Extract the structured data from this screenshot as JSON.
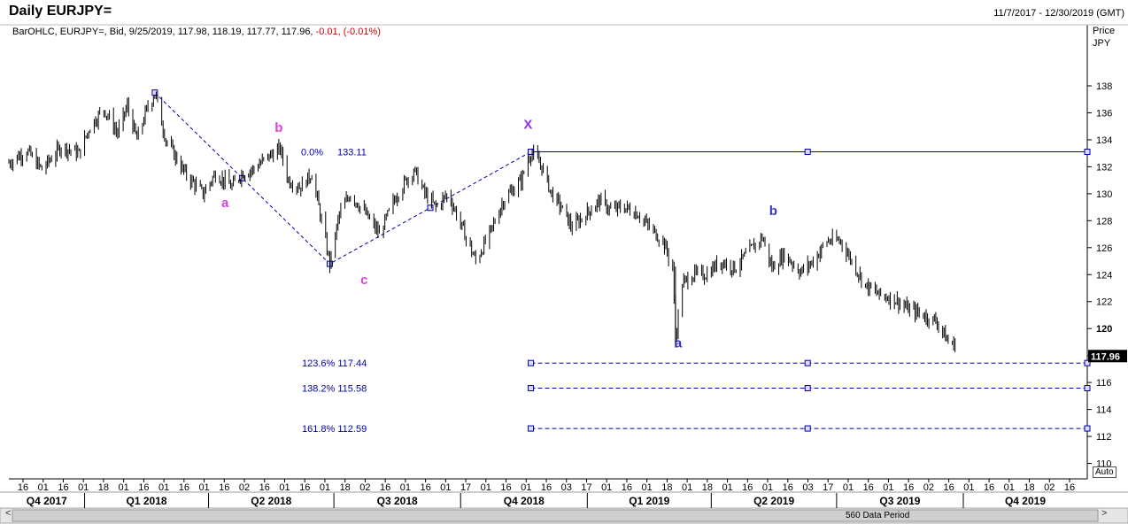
{
  "header": {
    "title": "Daily EURJPY=",
    "date_range": "11/7/2017 - 12/30/2019 (GMT)",
    "info_prefix": "BarOHLC, EURJPY=, Bid, 9/25/2019, 117.98, 118.19, 117.77, 117.96, ",
    "info_change": "-0.01, (-0.01%)",
    "price_label_1": "Price",
    "price_label_2": "JPY",
    "auto_label": "Auto",
    "data_period": "560 Data Period",
    "scroll_left": "<",
    "scroll_right": ">"
  },
  "chart_data": {
    "type": "bar",
    "ylim": [
      108.8,
      139.8
    ],
    "yticks": [
      110,
      112,
      114,
      116,
      118,
      120,
      122,
      124,
      126,
      128,
      130,
      132,
      134,
      136,
      138
    ],
    "last_price": "117.96",
    "day_ticks": [
      "16",
      "01",
      "16",
      "01",
      "18",
      "01",
      "16",
      "01",
      "16",
      "01",
      "16",
      "02",
      "16",
      "01",
      "16",
      "01",
      "18",
      "02",
      "16",
      "01",
      "16",
      "01",
      "17",
      "01",
      "16",
      "01",
      "16",
      "03",
      "17",
      "01",
      "16",
      "01",
      "18",
      "01",
      "18",
      "01",
      "16",
      "01",
      "16",
      "03",
      "17",
      "01",
      "16",
      "01",
      "16",
      "02",
      "16",
      "01",
      "16",
      "01",
      "18",
      "02",
      "16"
    ],
    "quarters": [
      "Q4 2017",
      "Q1 2018",
      "Q2 2018",
      "Q3 2018",
      "Q4 2018",
      "Q1 2019",
      "Q2 2019",
      "Q3 2019",
      "Q4 2019"
    ],
    "series_path": [
      [
        "2017-11-07",
        132.3
      ],
      [
        "2017-11-20",
        133.2
      ],
      [
        "2017-12-01",
        131.8
      ],
      [
        "2017-12-15",
        133.5
      ],
      [
        "2017-12-28",
        133.0
      ],
      [
        "2018-01-05",
        135.0
      ],
      [
        "2018-01-15",
        136.3
      ],
      [
        "2018-01-25",
        134.5
      ],
      [
        "2018-02-01",
        136.5
      ],
      [
        "2018-02-08",
        134.0
      ],
      [
        "2018-02-15",
        136.2
      ],
      [
        "2018-02-21",
        137.5
      ],
      [
        "2018-03-01",
        134.0
      ],
      [
        "2018-03-15",
        131.5
      ],
      [
        "2018-03-28",
        130.0
      ],
      [
        "2018-04-06",
        131.5
      ],
      [
        "2018-04-18",
        130.5
      ],
      [
        "2018-04-25",
        131.5
      ],
      [
        "2018-05-03",
        131.8
      ],
      [
        "2018-05-15",
        132.8
      ],
      [
        "2018-05-23",
        133.3
      ],
      [
        "2018-05-29",
        131.0
      ],
      [
        "2018-06-07",
        130.5
      ],
      [
        "2018-06-15",
        131.5
      ],
      [
        "2018-06-22",
        128.0
      ],
      [
        "2018-06-28",
        124.8
      ],
      [
        "2018-07-05",
        128.5
      ],
      [
        "2018-07-13",
        130.0
      ],
      [
        "2018-07-24",
        128.5
      ],
      [
        "2018-08-03",
        127.0
      ],
      [
        "2018-08-16",
        130.0
      ],
      [
        "2018-08-28",
        131.8
      ],
      [
        "2018-09-05",
        130.0
      ],
      [
        "2018-09-13",
        129.0
      ],
      [
        "2018-09-22",
        130.0
      ],
      [
        "2018-10-02",
        127.5
      ],
      [
        "2018-10-12",
        125.0
      ],
      [
        "2018-10-22",
        127.0
      ],
      [
        "2018-11-01",
        129.5
      ],
      [
        "2018-11-14",
        131.0
      ],
      [
        "2018-11-21",
        133.1
      ],
      [
        "2018-11-29",
        132.0
      ],
      [
        "2018-12-06",
        130.0
      ],
      [
        "2018-12-13",
        129.0
      ],
      [
        "2018-12-21",
        127.5
      ],
      [
        "2019-01-03",
        128.8
      ],
      [
        "2019-01-10",
        129.5
      ],
      [
        "2019-01-18",
        128.8
      ],
      [
        "2019-01-28",
        129.0
      ],
      [
        "2019-02-07",
        128.5
      ],
      [
        "2019-02-15",
        127.5
      ],
      [
        "2019-02-25",
        126.5
      ],
      [
        "2019-03-04",
        124.5
      ],
      [
        "2019-03-06",
        119.3
      ],
      [
        "2019-03-11",
        123.3
      ],
      [
        "2019-03-18",
        124.0
      ],
      [
        "2019-03-28",
        124.0
      ],
      [
        "2019-04-08",
        125.0
      ],
      [
        "2019-04-18",
        124.5
      ],
      [
        "2019-05-01",
        126.0
      ],
      [
        "2019-05-08",
        126.8
      ],
      [
        "2019-05-15",
        124.5
      ],
      [
        "2019-05-24",
        125.5
      ],
      [
        "2019-06-05",
        124.2
      ],
      [
        "2019-06-14",
        125.0
      ],
      [
        "2019-06-24",
        126.5
      ],
      [
        "2019-07-04",
        126.5
      ],
      [
        "2019-07-12",
        125.0
      ],
      [
        "2019-07-22",
        123.2
      ],
      [
        "2019-08-01",
        122.5
      ],
      [
        "2019-08-12",
        122.2
      ],
      [
        "2019-08-21",
        121.5
      ],
      [
        "2019-09-02",
        121.0
      ],
      [
        "2019-09-12",
        120.5
      ],
      [
        "2019-09-20",
        119.0
      ],
      [
        "2019-10-01",
        118.5
      ],
      [
        "2019-10-10",
        117.5
      ],
      [
        "2019-10-21",
        118.5
      ],
      [
        "2019-11-05",
        118.0
      ],
      [
        "2019-11-15",
        117.2
      ],
      [
        "2019-11-27",
        116.0
      ],
      [
        "2019-12-05",
        118.8
      ],
      [
        "2019-12-13",
        119.8
      ],
      [
        "2019-12-20",
        119.3
      ],
      [
        "2019-12-30",
        117.96
      ]
    ],
    "wave_labels": [
      {
        "text": "a",
        "date": "2018-04-13",
        "price": 129.0,
        "color": "#e040e0"
      },
      {
        "text": "b",
        "date": "2018-05-22",
        "price": 134.6,
        "color": "#e040e0"
      },
      {
        "text": "c",
        "date": "2018-07-23",
        "price": 123.3,
        "color": "#e040e0"
      },
      {
        "text": "X",
        "date": "2018-11-19",
        "price": 134.8,
        "color": "#8833ee"
      },
      {
        "text": "a",
        "date": "2019-03-08",
        "price": 118.6,
        "color": "#3333cc"
      },
      {
        "text": "b",
        "date": "2019-05-16",
        "price": 128.4,
        "color": "#3333cc"
      }
    ],
    "fib_levels": [
      {
        "label": "0.0%",
        "price": 133.11,
        "price_label": "133.11"
      },
      {
        "label": "123.6%",
        "price": 117.44,
        "price_label": "123.6% 117.44"
      },
      {
        "label": "138.2%",
        "price": 115.58,
        "price_label": "138.2% 115.58"
      },
      {
        "label": "161.8%",
        "price": 112.59,
        "price_label": "161.8% 112.59"
      }
    ],
    "wave_line": [
      [
        "2018-02-21",
        137.5
      ],
      [
        "2018-06-28",
        124.8
      ],
      [
        "2018-11-21",
        133.11
      ]
    ],
    "accent_color": "#0000aa"
  }
}
